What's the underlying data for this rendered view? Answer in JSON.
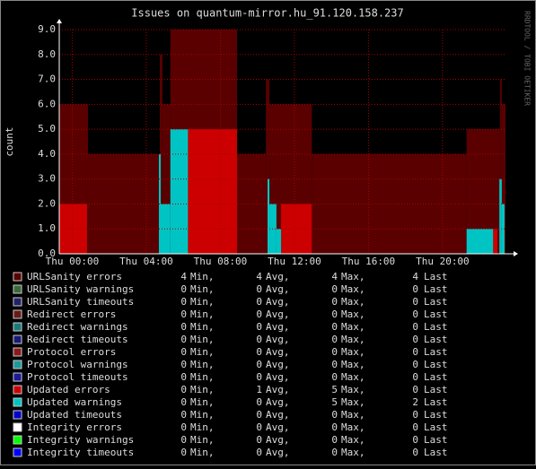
{
  "chart_data": {
    "type": "step-area",
    "title": "Issues on quantum-mirror.hu_91.120.158.237",
    "y_label": "count",
    "watermark": "RRDTOOL / TOBI OETIKER",
    "xlim": [
      -0.7,
      23.4
    ],
    "xticks": [
      {
        "value": 0,
        "label": "Thu 00:00"
      },
      {
        "value": 4,
        "label": "Thu 04:00"
      },
      {
        "value": 8,
        "label": "Thu 08:00"
      },
      {
        "value": 12,
        "label": "Thu 12:00"
      },
      {
        "value": 16,
        "label": "Thu 16:00"
      },
      {
        "value": 20,
        "label": "Thu 20:00"
      }
    ],
    "ylim": [
      0,
      9
    ],
    "yticks": [
      {
        "value": 0,
        "label": "0.0"
      },
      {
        "value": 1,
        "label": "1.0"
      },
      {
        "value": 2,
        "label": "2.0"
      },
      {
        "value": 3,
        "label": "3.0"
      },
      {
        "value": 4,
        "label": "4.0"
      },
      {
        "value": 5,
        "label": "5.0"
      },
      {
        "value": 6,
        "label": "6.0"
      },
      {
        "value": 7,
        "label": "7.0"
      },
      {
        "value": 8,
        "label": "8.0"
      },
      {
        "value": 9,
        "label": "9.0"
      }
    ],
    "grid": true,
    "stat_labels": [
      "Min,",
      "Avg,",
      "Max,",
      "Last"
    ],
    "series": [
      {
        "name": "URLSanity errors",
        "color": "#5a0000",
        "stats": [
          4,
          4,
          4,
          4
        ],
        "x": [
          -0.7,
          0.85,
          4.73,
          4.87,
          5.3,
          8.9,
          10.46,
          10.65,
          12.94,
          21.3,
          23.1,
          23.2
        ],
        "values": [
          6,
          4,
          8,
          6,
          9,
          4,
          7,
          6,
          4,
          5,
          7,
          6
        ]
      },
      {
        "name": "URLSanity warnings",
        "color": "#3a6a3a",
        "stats": [
          0,
          0,
          0,
          0
        ]
      },
      {
        "name": "URLSanity timeouts",
        "color": "#22226a",
        "stats": [
          0,
          0,
          0,
          0
        ]
      },
      {
        "name": "Redirect errors",
        "color": "#6a1a1a",
        "stats": [
          0,
          0,
          0,
          0
        ]
      },
      {
        "name": "Redirect warnings",
        "color": "#1a7a7a",
        "stats": [
          0,
          0,
          0,
          0
        ]
      },
      {
        "name": "Redirect timeouts",
        "color": "#1a1a7a",
        "stats": [
          0,
          0,
          0,
          0
        ]
      },
      {
        "name": "Protocol errors",
        "color": "#8a1a1a",
        "stats": [
          0,
          0,
          0,
          0
        ]
      },
      {
        "name": "Protocol warnings",
        "color": "#1a9a9a",
        "stats": [
          0,
          0,
          0,
          0
        ]
      },
      {
        "name": "Protocol timeouts",
        "color": "#1a1a9a",
        "stats": [
          0,
          0,
          0,
          0
        ]
      },
      {
        "name": "Updated errors",
        "color": "#cc0000",
        "stats": [
          0,
          1,
          5,
          0
        ],
        "x": [
          -0.7,
          0.8,
          6.25,
          8.9,
          11.28,
          12.94,
          22.73,
          22.97
        ],
        "values": [
          2,
          0,
          5,
          0,
          2,
          0,
          1,
          0
        ]
      },
      {
        "name": "Updated warnings",
        "color": "#00c4c4",
        "stats": [
          0,
          0,
          5,
          2
        ],
        "x": [
          4.68,
          4.78,
          5.3,
          6.25,
          10.55,
          10.65,
          11.03,
          11.28,
          21.3,
          22.73,
          23.07,
          23.2,
          23.35
        ],
        "values": [
          4,
          2,
          5,
          0,
          3,
          2,
          1,
          0,
          1,
          0,
          3,
          2,
          0
        ]
      },
      {
        "name": "Updated timeouts",
        "color": "#0000cc",
        "stats": [
          0,
          0,
          0,
          0
        ]
      },
      {
        "name": "Integrity errors",
        "color": "#ffffff",
        "stats": [
          0,
          0,
          0,
          0
        ]
      },
      {
        "name": "Integrity warnings",
        "color": "#00ff00",
        "stats": [
          0,
          0,
          0,
          0
        ]
      },
      {
        "name": "Integrity timeouts",
        "color": "#0000ff",
        "stats": [
          0,
          0,
          0,
          0
        ]
      }
    ]
  }
}
